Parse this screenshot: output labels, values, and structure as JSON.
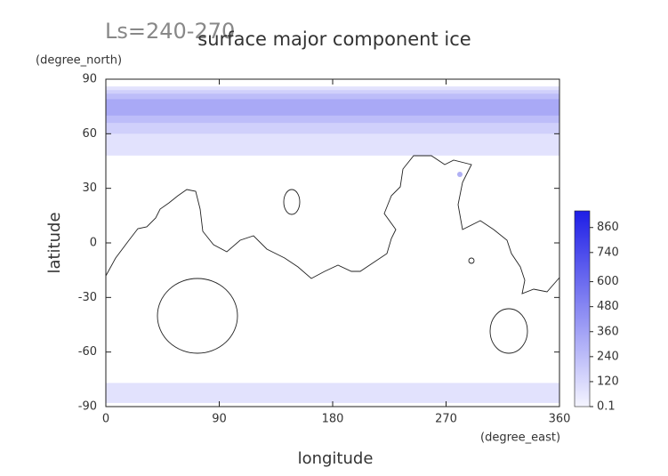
{
  "chart_data": {
    "type": "contour-map",
    "annotation": "Ls=240-270",
    "title": "surface major component ice",
    "y_units": "(degree_north)",
    "x_units": "(degree_east)",
    "xlabel": "longitude",
    "ylabel": "latitude",
    "xlim": [
      0,
      360
    ],
    "xticks": [
      0,
      90,
      180,
      270,
      360
    ],
    "ylim": [
      -90,
      90
    ],
    "yticks": [
      -90,
      -60,
      -30,
      0,
      30,
      60,
      90
    ],
    "clim": [
      0.1,
      940
    ],
    "cticks": [
      0.1,
      120,
      240,
      360,
      480,
      600,
      740,
      860
    ],
    "colormap": [
      "#f4f4ff",
      "#1e1ee6"
    ],
    "regions": [
      {
        "level": 80,
        "lat": [
          48,
          86
        ]
      },
      {
        "level": 160,
        "lat": [
          60,
          84
        ]
      },
      {
        "level": 240,
        "lat": [
          66,
          82
        ]
      },
      {
        "level": 330,
        "lat": [
          70,
          79
        ]
      },
      {
        "level": 80,
        "lat": [
          -88,
          -77
        ]
      }
    ]
  }
}
